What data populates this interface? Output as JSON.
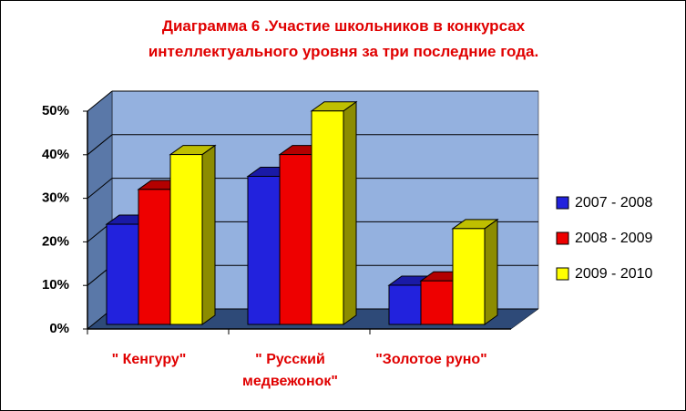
{
  "chart_data": {
    "type": "bar",
    "title": "Диаграмма 6 .Участие школьников в конкурсах интеллектуального уровня за три последние года.",
    "categories": [
      "\" Кенгуру\"",
      "\" Русский медвежонок\"",
      "\"Золотое руно\""
    ],
    "series": [
      {
        "name": "2007 - 2008",
        "color": "#2222dd",
        "values": [
          23,
          34,
          9
        ]
      },
      {
        "name": "2008 - 2009",
        "color": "#ee0000",
        "values": [
          31,
          39,
          10
        ]
      },
      {
        "name": "2009 - 2010",
        "color": "#ffff00",
        "values": [
          39,
          49,
          22
        ]
      }
    ],
    "ylim": [
      0,
      50
    ],
    "yticks": [
      {
        "value": 0,
        "label": "0%"
      },
      {
        "value": 10,
        "label": "10%"
      },
      {
        "value": 20,
        "label": "20%"
      },
      {
        "value": 30,
        "label": "30%"
      },
      {
        "value": 40,
        "label": "40%"
      },
      {
        "value": 50,
        "label": "50%"
      }
    ],
    "grid": true,
    "legend": "right"
  }
}
